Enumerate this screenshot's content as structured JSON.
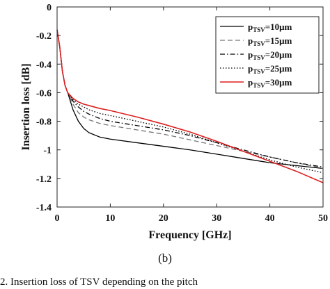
{
  "chart_data": {
    "type": "line",
    "xlabel": "Frequency [GHz]",
    "ylabel": "Insertion loss [dB]",
    "xlim": [
      0,
      50
    ],
    "ylim": [
      -1.4,
      0
    ],
    "xticks": [
      "0",
      "10",
      "20",
      "30",
      "40",
      "50"
    ],
    "yticks": [
      "0",
      "-0.2",
      "-0.4",
      "-0.6",
      "-0.8",
      "-1",
      "-1.2",
      "-1.4"
    ],
    "grid": false,
    "legend_position": "top-right",
    "x": [
      0,
      0.5,
      1,
      1.5,
      2,
      3,
      4,
      5,
      6,
      8,
      10,
      15,
      20,
      25,
      30,
      35,
      40,
      45,
      50
    ],
    "series": [
      {
        "name": "p_TSV=10μm",
        "legend_main": "p",
        "legend_sub": "TSV",
        "legend_tail": "=10μm",
        "color": "#000000",
        "dash": "solid",
        "values": [
          -0.16,
          -0.28,
          -0.45,
          -0.55,
          -0.6,
          -0.72,
          -0.8,
          -0.85,
          -0.88,
          -0.91,
          -0.925,
          -0.95,
          -0.975,
          -1.0,
          -1.03,
          -1.06,
          -1.09,
          -1.11,
          -1.13
        ]
      },
      {
        "name": "p_TSV=15μm",
        "legend_main": "p",
        "legend_sub": "TSV",
        "legend_tail": "=15μm",
        "color": "#777777",
        "dash": "long-dash",
        "values": [
          -0.16,
          -0.28,
          -0.45,
          -0.55,
          -0.6,
          -0.68,
          -0.74,
          -0.77,
          -0.79,
          -0.815,
          -0.83,
          -0.86,
          -0.89,
          -0.93,
          -0.97,
          -1.01,
          -1.05,
          -1.09,
          -1.13
        ]
      },
      {
        "name": "p_TSV=20μm",
        "legend_main": "p",
        "legend_sub": "TSV",
        "legend_tail": "=20μm",
        "color": "#000000",
        "dash": "dash-dot",
        "values": [
          -0.16,
          -0.28,
          -0.45,
          -0.55,
          -0.6,
          -0.66,
          -0.7,
          -0.73,
          -0.75,
          -0.78,
          -0.8,
          -0.83,
          -0.86,
          -0.9,
          -0.95,
          -1.0,
          -1.05,
          -1.09,
          -1.12
        ]
      },
      {
        "name": "p_TSV=25μm",
        "legend_main": "p",
        "legend_sub": "TSV",
        "legend_tail": "=25μm",
        "color": "#000000",
        "dash": "dotted",
        "values": [
          -0.16,
          -0.28,
          -0.45,
          -0.55,
          -0.6,
          -0.65,
          -0.68,
          -0.7,
          -0.72,
          -0.745,
          -0.76,
          -0.8,
          -0.84,
          -0.89,
          -0.95,
          -1.01,
          -1.07,
          -1.12,
          -1.16
        ]
      },
      {
        "name": "p_TSV=30μm",
        "legend_main": "p",
        "legend_sub": "TSV",
        "legend_tail": "=30μm",
        "color": "#dd1f1f",
        "dash": "solid",
        "values": [
          -0.16,
          -0.28,
          -0.45,
          -0.55,
          -0.6,
          -0.64,
          -0.665,
          -0.68,
          -0.69,
          -0.71,
          -0.725,
          -0.77,
          -0.82,
          -0.875,
          -0.94,
          -1.01,
          -1.08,
          -1.15,
          -1.23
        ]
      }
    ]
  },
  "figure": {
    "panel_label": "(b)",
    "caption": "2. Insertion loss of  TSV depending on the pitch"
  }
}
